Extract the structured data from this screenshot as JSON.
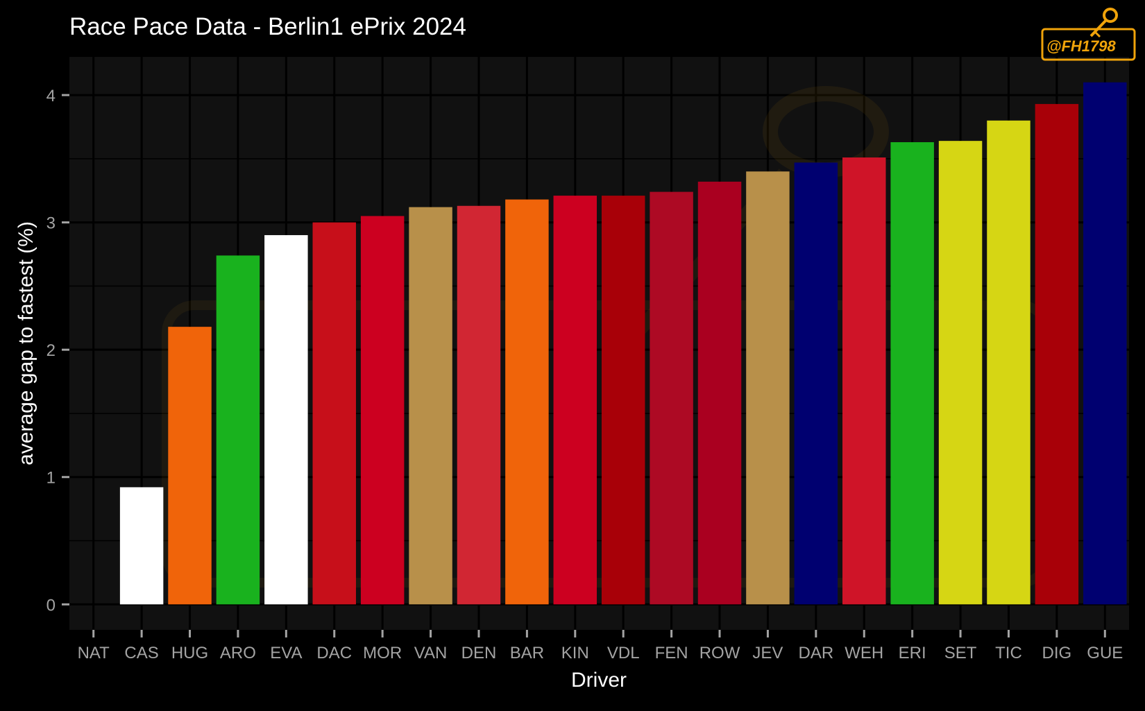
{
  "chart_data": {
    "type": "bar",
    "title": "Race Pace Data - Berlin1 ePrix 2024",
    "xlabel": "Driver",
    "ylabel": "average gap to fastest (%)",
    "categories": [
      "NAT",
      "CAS",
      "HUG",
      "ARO",
      "EVA",
      "DAC",
      "MOR",
      "VAN",
      "DEN",
      "BAR",
      "KIN",
      "VDL",
      "FEN",
      "ROW",
      "JEV",
      "DAR",
      "WEH",
      "ERI",
      "SET",
      "TIC",
      "DIG",
      "GUE"
    ],
    "values": [
      0,
      0.92,
      2.18,
      2.74,
      2.9,
      3.0,
      3.05,
      3.12,
      3.13,
      3.18,
      3.21,
      3.21,
      3.24,
      3.32,
      3.4,
      3.47,
      3.51,
      3.63,
      3.64,
      3.8,
      3.93,
      4.1
    ],
    "colors": [
      "#ffffff",
      "#ffffff",
      "#f0640a",
      "#19b21e",
      "#ffffff",
      "#c70f1a",
      "#cc0020",
      "#b8904a",
      "#d12633",
      "#f0640a",
      "#cc0020",
      "#a80008",
      "#ad0a24",
      "#aa0020",
      "#b8904a",
      "#000070",
      "#cf1428",
      "#19b21e",
      "#d6d614",
      "#d6d614",
      "#a80008",
      "#000070"
    ],
    "yticks": [
      0,
      1,
      2,
      3,
      4
    ],
    "ylim": [
      -0.2,
      4.3
    ],
    "grid": true,
    "legend": "none",
    "background": "#111111",
    "page_background": "#000000",
    "grid_color": "#000000"
  },
  "watermark": {
    "text": "@FH1798"
  }
}
